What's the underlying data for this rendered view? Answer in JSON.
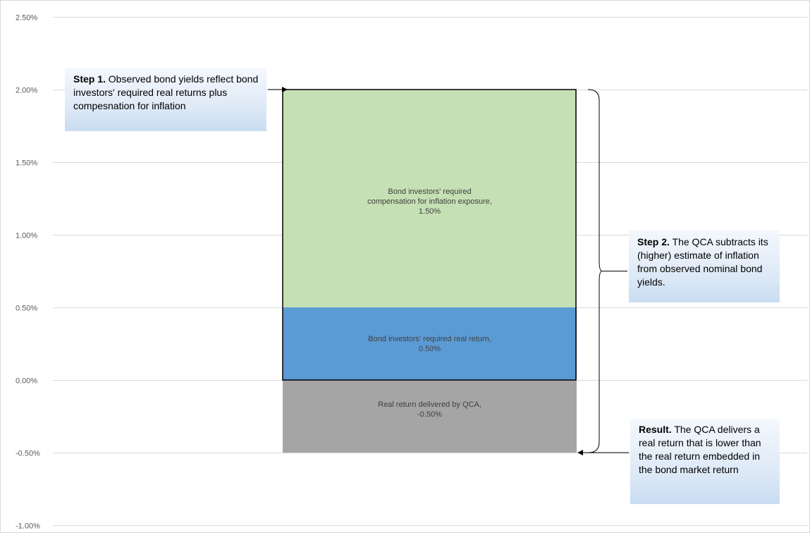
{
  "chart_data": {
    "type": "bar",
    "stacked": true,
    "title": "",
    "xlabel": "",
    "ylabel": "",
    "ylim": [
      -1.0,
      2.5
    ],
    "y_ticks": [
      2.5,
      2.0,
      1.5,
      1.0,
      0.5,
      0.0,
      -0.5,
      -1.0
    ],
    "y_tick_labels": [
      "2.50%",
      "2.00%",
      "1.50%",
      "1.00%",
      "0.50%",
      "0.00%",
      "-0.50%",
      "-1.00%"
    ],
    "grid": true,
    "legend": "none",
    "segments": [
      {
        "name": "real-return-delivered",
        "from": -0.5,
        "to": 0.0,
        "value": -0.5,
        "color": "#a5a5a5",
        "label_lines": [
          "Real return delivered by QCA,",
          "-0.50%"
        ]
      },
      {
        "name": "required-real-return",
        "from": 0.0,
        "to": 0.5,
        "value": 0.5,
        "color": "#5b9bd5",
        "label_lines": [
          "Bond investors' required real return,",
          "0.50%"
        ]
      },
      {
        "name": "inflation-compensation",
        "from": 0.5,
        "to": 2.0,
        "value": 1.5,
        "color": "#c5e0b4",
        "label_lines": [
          "Bond investors' required",
          "compensation for inflation exposure,",
          "1.50%"
        ]
      }
    ],
    "annotations": [
      {
        "name": "step1",
        "bold": "Step 1.",
        "text": " Observed bond yields reflect bond investors' required real returns plus compesnation for inflation"
      },
      {
        "name": "step2",
        "bold": "Step 2.",
        "text": "  The QCA subtracts its (higher) estimate of inflation from observed nominal bond yields."
      },
      {
        "name": "result",
        "bold": "Result.",
        "text": "  The QCA delivers a real return that is lower than the real return embedded in the bond market return"
      }
    ]
  }
}
